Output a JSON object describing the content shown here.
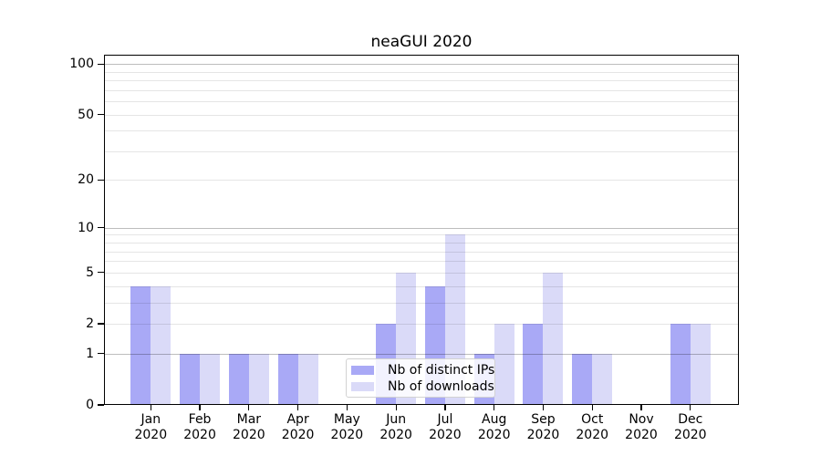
{
  "chart_data": {
    "type": "bar",
    "title": "neaGUI 2020",
    "categories": [
      "Jan 2020",
      "Feb 2020",
      "Mar 2020",
      "Apr 2020",
      "May 2020",
      "Jun 2020",
      "Jul 2020",
      "Aug 2020",
      "Sep 2020",
      "Oct 2020",
      "Nov 2020",
      "Dec 2020"
    ],
    "series": [
      {
        "name": "Nb of distinct IPs",
        "color": "#a9a9f6",
        "values": [
          4,
          1,
          1,
          1,
          0,
          2,
          4,
          1,
          2,
          1,
          0,
          2
        ]
      },
      {
        "name": "Nb of downloads",
        "color": "#dadaf8",
        "values": [
          4,
          1,
          1,
          1,
          0,
          5,
          9,
          2,
          5,
          1,
          0,
          2
        ]
      }
    ],
    "yscale": "log1p",
    "ylim": [
      0,
      115
    ],
    "y_ticks": [
      0,
      1,
      2,
      5,
      10,
      20,
      50,
      100
    ],
    "y_major_gridlines": [
      1,
      10,
      100
    ],
    "y_minor_gridlines": [
      2,
      3,
      4,
      5,
      6,
      7,
      8,
      9,
      20,
      30,
      40,
      50,
      60,
      70,
      80,
      90
    ],
    "grid": true,
    "legend": {
      "location": "lower center inside plot",
      "entries": [
        "Nb of distinct IPs",
        "Nb of downloads"
      ]
    },
    "colors": {
      "bar_distinct_ips": "#a9a9f6",
      "bar_downloads": "#dadaf8",
      "grid_major": "rgba(0,0,0,0.26)",
      "grid_minor": "rgba(0,0,0,0.10)",
      "axis": "#000000",
      "text": "#000000",
      "legend_border": "#d2d2d2"
    }
  }
}
